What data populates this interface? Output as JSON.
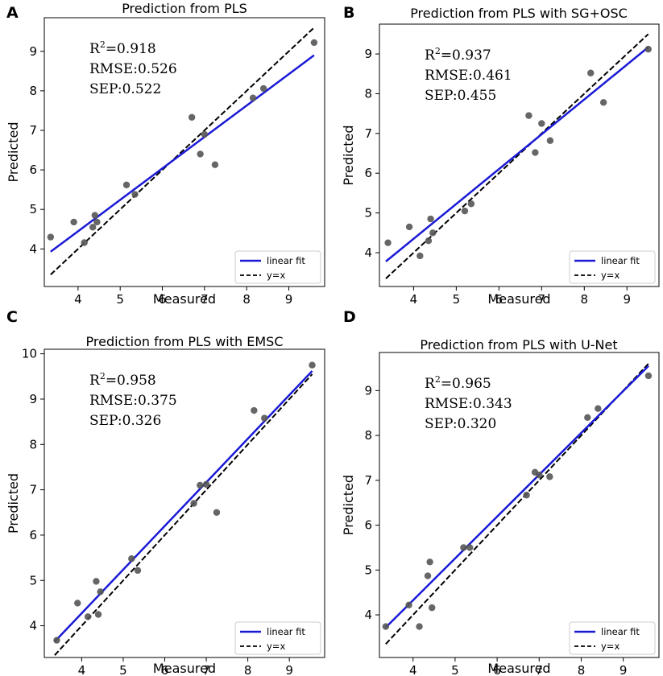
{
  "chart_data": [
    {
      "panel_letter": "A",
      "type": "scatter",
      "title": "Prediction from PLS",
      "xlabel": "Measured",
      "ylabel": "Predicted",
      "xlim": [
        3.2,
        9.85
      ],
      "ylim": [
        3.05,
        9.85
      ],
      "xticks": [
        "4",
        "5",
        "6",
        "7",
        "8",
        "9"
      ],
      "yticks": [
        "4",
        "5",
        "6",
        "7",
        "8",
        "9"
      ],
      "stats": {
        "r2_prefix": "R",
        "r2_sup": "2",
        "r2_value": "=0.918",
        "rmse": "RMSE:0.526",
        "sep": "SEP:0.522"
      },
      "points": [
        [
          3.35,
          4.3
        ],
        [
          3.9,
          4.68
        ],
        [
          4.15,
          4.16
        ],
        [
          4.35,
          4.55
        ],
        [
          4.4,
          4.85
        ],
        [
          4.45,
          4.68
        ],
        [
          5.15,
          5.62
        ],
        [
          5.35,
          5.38
        ],
        [
          6.7,
          7.33
        ],
        [
          6.9,
          6.4
        ],
        [
          7.0,
          6.9
        ],
        [
          7.25,
          6.13
        ],
        [
          8.15,
          7.82
        ],
        [
          8.4,
          8.06
        ],
        [
          9.6,
          9.22
        ]
      ],
      "fit": {
        "name": "linear fit",
        "x": [
          3.35,
          9.6
        ],
        "y": [
          3.93,
          8.9
        ]
      },
      "identity": {
        "name": "y=x",
        "x": [
          3.35,
          9.6
        ]
      },
      "legend": [
        "linear fit",
        "y=x"
      ]
    },
    {
      "panel_letter": "B",
      "type": "scatter",
      "title": "Prediction from PLS with SG+OSC",
      "xlabel": "Measured",
      "ylabel": "Predicted",
      "xlim": [
        3.2,
        9.75
      ],
      "ylim": [
        3.15,
        9.75
      ],
      "xticks": [
        "4",
        "5",
        "6",
        "7",
        "8",
        "9"
      ],
      "yticks": [
        "4",
        "5",
        "6",
        "7",
        "8",
        "9"
      ],
      "stats": {
        "r2_prefix": "R",
        "r2_sup": "2",
        "r2_value": "=0.937",
        "rmse": "RMSE:0.461",
        "sep": "SEP:0.455"
      },
      "points": [
        [
          3.4,
          4.25
        ],
        [
          3.9,
          4.65
        ],
        [
          4.15,
          3.92
        ],
        [
          4.35,
          4.3
        ],
        [
          4.4,
          4.85
        ],
        [
          4.45,
          4.5
        ],
        [
          5.2,
          5.05
        ],
        [
          5.35,
          5.23
        ],
        [
          6.7,
          7.45
        ],
        [
          6.85,
          6.52
        ],
        [
          7.0,
          7.25
        ],
        [
          7.2,
          6.82
        ],
        [
          8.15,
          8.52
        ],
        [
          8.45,
          7.78
        ],
        [
          9.5,
          9.12
        ]
      ],
      "fit": {
        "name": "linear fit",
        "x": [
          3.35,
          9.5
        ],
        "y": [
          3.78,
          9.17
        ]
      },
      "identity": {
        "name": "y=x",
        "x": [
          3.35,
          9.5
        ]
      },
      "legend": [
        "linear fit",
        "y=x"
      ]
    },
    {
      "panel_letter": "C",
      "type": "scatter",
      "title": "Prediction from PLS with EMSC",
      "xlabel": "Measured",
      "ylabel": "Predicted",
      "xlim": [
        3.1,
        9.85
      ],
      "ylim": [
        3.3,
        10.1
      ],
      "xticks": [
        "4",
        "5",
        "6",
        "7",
        "8",
        "9"
      ],
      "yticks": [
        "4",
        "5",
        "6",
        "7",
        "8",
        "9",
        "10"
      ],
      "stats": {
        "r2_prefix": "R",
        "r2_sup": "2",
        "r2_value": "=0.958",
        "rmse": "RMSE:0.375",
        "sep": "SEP:0.326"
      },
      "points": [
        [
          3.4,
          3.68
        ],
        [
          3.9,
          4.5
        ],
        [
          4.15,
          4.2
        ],
        [
          4.35,
          4.98
        ],
        [
          4.4,
          4.25
        ],
        [
          4.45,
          4.75
        ],
        [
          5.2,
          5.48
        ],
        [
          5.35,
          5.22
        ],
        [
          6.7,
          6.7
        ],
        [
          6.85,
          7.1
        ],
        [
          7.0,
          7.12
        ],
        [
          7.25,
          6.5
        ],
        [
          8.15,
          8.75
        ],
        [
          8.4,
          8.58
        ],
        [
          9.55,
          9.75
        ]
      ],
      "fit": {
        "name": "linear fit",
        "x": [
          3.35,
          9.55
        ],
        "y": [
          3.65,
          9.62
        ]
      },
      "identity": {
        "name": "y=x",
        "x": [
          3.35,
          9.55
        ]
      },
      "legend": [
        "linear fit",
        "y=x"
      ]
    },
    {
      "panel_letter": "D",
      "type": "scatter",
      "title": "Prediction from PLS with U-Net",
      "xlabel": "Measured",
      "ylabel": "Predicted",
      "xlim": [
        3.2,
        9.85
      ],
      "ylim": [
        3.05,
        9.85
      ],
      "xticks": [
        "4",
        "5",
        "6",
        "7",
        "8",
        "9"
      ],
      "yticks": [
        "4",
        "5",
        "6",
        "7",
        "8",
        "9"
      ],
      "stats": {
        "r2_prefix": "R",
        "r2_sup": "2",
        "r2_value": "=0.965",
        "rmse": "RMSE:0.343",
        "sep": "SEP:0.320"
      },
      "points": [
        [
          3.35,
          3.74
        ],
        [
          3.9,
          4.22
        ],
        [
          4.15,
          3.74
        ],
        [
          4.35,
          4.87
        ],
        [
          4.4,
          5.18
        ],
        [
          4.45,
          4.16
        ],
        [
          5.2,
          5.5
        ],
        [
          5.35,
          5.5
        ],
        [
          6.7,
          6.67
        ],
        [
          6.9,
          7.18
        ],
        [
          7.0,
          7.12
        ],
        [
          7.25,
          7.08
        ],
        [
          8.15,
          8.4
        ],
        [
          8.4,
          8.6
        ],
        [
          9.6,
          9.33
        ]
      ],
      "fit": {
        "name": "linear fit",
        "x": [
          3.35,
          9.6
        ],
        "y": [
          3.72,
          9.55
        ]
      },
      "identity": {
        "name": "y=x",
        "x": [
          3.35,
          9.6
        ]
      },
      "legend": [
        "linear fit",
        "y=x"
      ]
    }
  ],
  "colors": {
    "fit": "#1a1ad6",
    "identity": "#000000",
    "points": "#555555",
    "frame": "#000000"
  }
}
